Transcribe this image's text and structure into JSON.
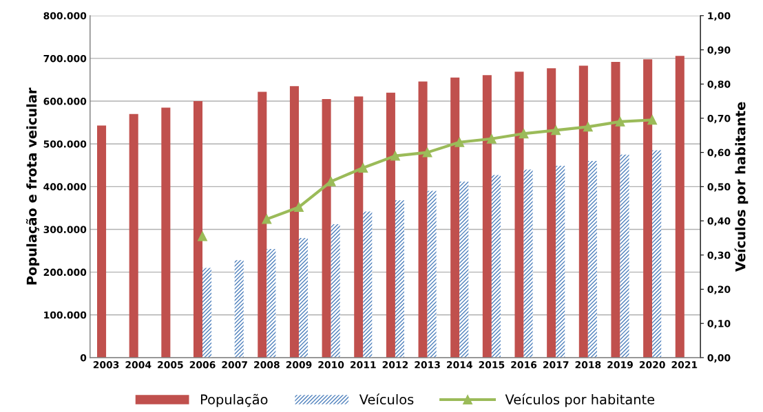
{
  "chart_data": {
    "type": "bar",
    "ylabel": "População e frota veicular",
    "y2label": "Veículos por habitante",
    "categories": [
      "2003",
      "2004",
      "2005",
      "2006",
      "2007",
      "2008",
      "2009",
      "2010",
      "2011",
      "2012",
      "2013",
      "2014",
      "2015",
      "2016",
      "2017",
      "2018",
      "2019",
      "2020",
      "2021"
    ],
    "series": [
      {
        "name": "População",
        "color": "#c0504d",
        "values": [
          543000,
          570000,
          585000,
          600000,
          null,
          622000,
          635000,
          605000,
          611000,
          620000,
          646000,
          655000,
          661000,
          669000,
          677000,
          683000,
          692000,
          698000,
          706000
        ]
      },
      {
        "name": "Veículos",
        "color": "#4f81bd",
        "values": [
          null,
          null,
          null,
          210000,
          228000,
          254000,
          280000,
          312000,
          342000,
          368000,
          390000,
          412000,
          427000,
          440000,
          449000,
          460000,
          475000,
          485000,
          null
        ]
      },
      {
        "name": "Veículos por habitante",
        "type": "line",
        "axis": "y2",
        "color": "#9bbb59",
        "marker": "triangle",
        "values": [
          null,
          null,
          null,
          0.355,
          null,
          0.405,
          0.44,
          0.515,
          0.555,
          0.59,
          0.6,
          0.63,
          0.64,
          0.655,
          0.665,
          0.675,
          0.69,
          0.695,
          null
        ]
      }
    ],
    "ylim": [
      0,
      800000
    ],
    "yticks": [
      0,
      {
        "value": 100000,
        "label": "100.000"
      },
      {
        "value": 200000,
        "label": "200.000"
      },
      {
        "value": 300000,
        "label": "300.000"
      },
      {
        "value": 400000,
        "label": "400.000"
      },
      {
        "value": 500000,
        "label": "500.000"
      },
      {
        "value": 600000,
        "label": "600.000"
      },
      {
        "value": 700000,
        "label": "700.000"
      },
      {
        "value": 800000,
        "label": "800.000"
      }
    ],
    "y2lim": [
      0,
      1
    ],
    "y2ticks": [
      {
        "value": 0,
        "label": "0,00"
      },
      {
        "value": 0.1,
        "label": "0,10"
      },
      {
        "value": 0.2,
        "label": "0,20"
      },
      {
        "value": 0.3,
        "label": "0,30"
      },
      {
        "value": 0.4,
        "label": "0,40"
      },
      {
        "value": 0.5,
        "label": "0,50"
      },
      {
        "value": 0.6,
        "label": "0,60"
      },
      {
        "value": 0.7,
        "label": "0,70"
      },
      {
        "value": 0.8,
        "label": "0,80"
      },
      {
        "value": 0.9,
        "label": "0,90"
      },
      {
        "value": 1,
        "label": "1,00"
      }
    ],
    "grid": "y",
    "legend": "bottom"
  }
}
